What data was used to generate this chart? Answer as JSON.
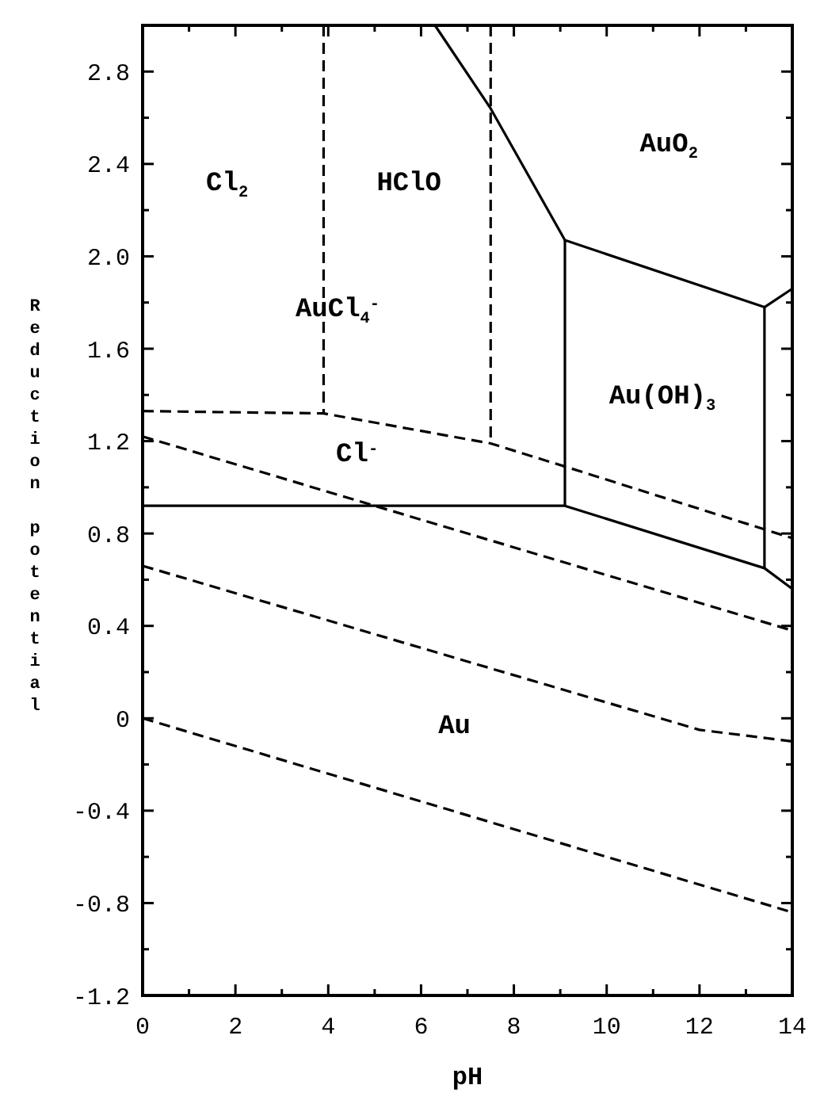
{
  "chart_data": {
    "type": "line",
    "xlabel": "pH",
    "ylabel": "Reduction potential",
    "xlim": [
      0,
      14
    ],
    "ylim": [
      -1.2,
      3.0
    ],
    "xticks": [
      0,
      {
        "value": 1,
        "label": null
      },
      2,
      {
        "value": 3,
        "label": null
      },
      4,
      {
        "value": 5,
        "label": null
      },
      6,
      {
        "value": 7,
        "label": null
      },
      8,
      {
        "value": 9,
        "label": null
      },
      10,
      {
        "value": 11,
        "label": null
      },
      12,
      {
        "value": 13,
        "label": null
      },
      14
    ],
    "yticks": [
      {
        "value": -1.2,
        "label": "-1.2"
      },
      {
        "value": -1.0,
        "label": null
      },
      {
        "value": -0.8,
        "label": "-0.8"
      },
      {
        "value": -0.6,
        "label": null
      },
      {
        "value": -0.4,
        "label": "-0.4"
      },
      {
        "value": -0.2,
        "label": null
      },
      0,
      {
        "value": 0.2,
        "label": null
      },
      {
        "value": 0.4,
        "label": "0.4"
      },
      {
        "value": 0.6,
        "label": null
      },
      {
        "value": 0.8,
        "label": "0.8"
      },
      {
        "value": 1.0,
        "label": null
      },
      {
        "value": 1.2,
        "label": "1.2"
      },
      {
        "value": 1.4,
        "label": null
      },
      {
        "value": 1.6,
        "label": "1.6"
      },
      {
        "value": 1.8,
        "label": null
      },
      {
        "value": 2.0,
        "label": "2.0"
      },
      {
        "value": 2.2,
        "label": null
      },
      {
        "value": 2.4,
        "label": "2.4"
      },
      {
        "value": 2.6,
        "label": null
      },
      {
        "value": 2.8,
        "label": "2.8"
      }
    ],
    "grid": false,
    "series": [
      {
        "color": "#000000",
        "line_style": "solid",
        "x": [
          0,
          9.1,
          13.4,
          14
        ],
        "values": [
          0.92,
          0.92,
          0.65,
          0.56
        ]
      },
      {
        "color": "#000000",
        "line_style": "solid",
        "x": [
          9.1,
          9.1
        ],
        "values": [
          0.92,
          2.07
        ]
      },
      {
        "color": "#000000",
        "line_style": "solid",
        "x": [
          6.3,
          7.5,
          9.1,
          13.4,
          14
        ],
        "values": [
          3.0,
          2.64,
          2.07,
          1.78,
          1.86
        ]
      },
      {
        "color": "#000000",
        "line_style": "solid",
        "x": [
          13.4,
          13.4
        ],
        "values": [
          1.78,
          0.65
        ]
      },
      {
        "color": "#000000",
        "line_style": "dashed",
        "x": [
          3.9,
          3.9
        ],
        "values": [
          3.0,
          1.32
        ]
      },
      {
        "color": "#000000",
        "line_style": "dashed",
        "x": [
          7.5,
          7.5
        ],
        "values": [
          3.0,
          1.19
        ]
      },
      {
        "color": "#000000",
        "line_style": "dashed",
        "x": [
          0,
          3.9,
          7.5,
          9.1,
          14
        ],
        "values": [
          1.33,
          1.32,
          1.19,
          1.09,
          0.78
        ]
      },
      {
        "color": "#000000",
        "line_style": "dashed",
        "x": [
          0,
          14
        ],
        "values": [
          1.22,
          0.38
        ]
      },
      {
        "color": "#000000",
        "line_style": "dashed",
        "x": [
          0,
          12,
          14
        ],
        "values": [
          0.66,
          -0.05,
          -0.1
        ]
      },
      {
        "color": "#000000",
        "line_style": "dashed",
        "x": [
          0,
          14
        ],
        "values": [
          0,
          -0.84
        ]
      }
    ],
    "annotations": [
      "Cl$_{2}$",
      "HClO",
      "AuCl$_{4}$$^{-}$",
      "AuO$_{2}$",
      "Au(OH)$_{3}$",
      "Cl$^{-}$",
      "Au"
    ]
  }
}
